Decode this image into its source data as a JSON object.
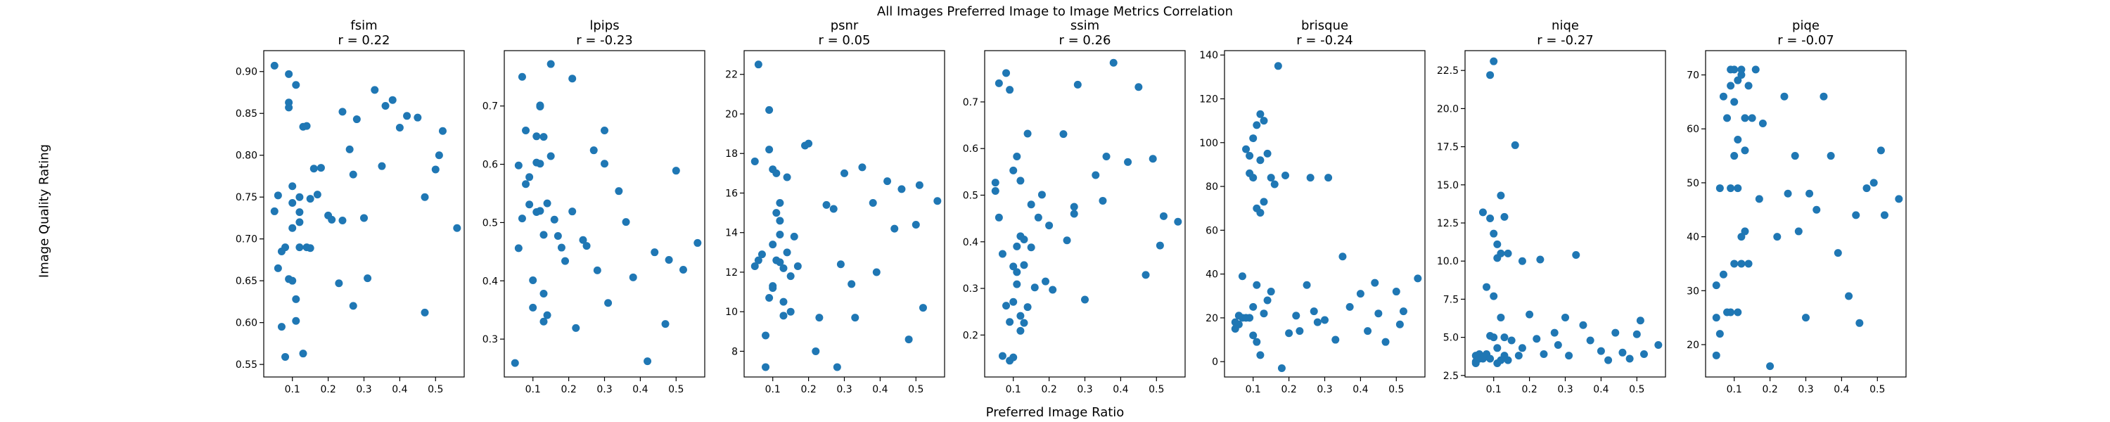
{
  "figure": {
    "suptitle": "All Images Preferred Image to Image Metrics Correlation",
    "xlabel": "Preferred Image Ratio",
    "ylabel": "Image Quality Rating",
    "marker_color": "#1f77b4"
  },
  "chart_data": [
    {
      "type": "scatter",
      "title": "fsim",
      "subtitle": "r = 0.22",
      "xlim": [
        0.02,
        0.58
      ],
      "ylim": [
        0.535,
        0.925
      ],
      "xticks": [
        0.1,
        0.2,
        0.3,
        0.4,
        0.5
      ],
      "yticks": [
        0.55,
        0.6,
        0.65,
        0.7,
        0.75,
        0.8,
        0.85,
        0.9
      ],
      "x": [
        0.05,
        0.05,
        0.06,
        0.06,
        0.07,
        0.07,
        0.08,
        0.08,
        0.09,
        0.09,
        0.09,
        0.09,
        0.1,
        0.1,
        0.1,
        0.1,
        0.11,
        0.11,
        0.11,
        0.12,
        0.12,
        0.12,
        0.12,
        0.13,
        0.13,
        0.14,
        0.14,
        0.15,
        0.15,
        0.16,
        0.17,
        0.18,
        0.2,
        0.21,
        0.23,
        0.24,
        0.24,
        0.26,
        0.27,
        0.27,
        0.28,
        0.3,
        0.31,
        0.33,
        0.35,
        0.36,
        0.38,
        0.4,
        0.42,
        0.45,
        0.47,
        0.47,
        0.5,
        0.51,
        0.52,
        0.56
      ],
      "y": [
        0.907,
        0.733,
        0.665,
        0.752,
        0.685,
        0.595,
        0.69,
        0.559,
        0.897,
        0.863,
        0.857,
        0.652,
        0.763,
        0.743,
        0.713,
        0.65,
        0.884,
        0.628,
        0.602,
        0.75,
        0.732,
        0.72,
        0.69,
        0.834,
        0.563,
        0.835,
        0.69,
        0.689,
        0.748,
        0.784,
        0.753,
        0.785,
        0.728,
        0.723,
        0.647,
        0.852,
        0.722,
        0.807,
        0.777,
        0.62,
        0.843,
        0.725,
        0.653,
        0.878,
        0.787,
        0.859,
        0.866,
        0.833,
        0.847,
        0.845,
        0.612,
        0.75,
        0.783,
        0.8,
        0.829,
        0.713
      ]
    },
    {
      "type": "scatter",
      "title": "lpips",
      "subtitle": "r = -0.23",
      "xlim": [
        0.02,
        0.58
      ],
      "ylim": [
        0.235,
        0.795
      ],
      "xticks": [
        0.1,
        0.2,
        0.3,
        0.4,
        0.5
      ],
      "yticks": [
        0.3,
        0.4,
        0.5,
        0.6,
        0.7
      ],
      "x": [
        0.05,
        0.06,
        0.06,
        0.07,
        0.07,
        0.08,
        0.08,
        0.09,
        0.09,
        0.1,
        0.1,
        0.11,
        0.11,
        0.11,
        0.12,
        0.12,
        0.12,
        0.12,
        0.13,
        0.13,
        0.13,
        0.13,
        0.14,
        0.14,
        0.15,
        0.15,
        0.16,
        0.17,
        0.18,
        0.19,
        0.21,
        0.21,
        0.22,
        0.24,
        0.25,
        0.27,
        0.28,
        0.3,
        0.3,
        0.31,
        0.34,
        0.36,
        0.38,
        0.42,
        0.44,
        0.47,
        0.48,
        0.5,
        0.52,
        0.56
      ],
      "y": [
        0.259,
        0.456,
        0.598,
        0.75,
        0.507,
        0.658,
        0.566,
        0.578,
        0.531,
        0.401,
        0.354,
        0.648,
        0.603,
        0.518,
        0.701,
        0.699,
        0.601,
        0.52,
        0.647,
        0.378,
        0.33,
        0.479,
        0.533,
        0.341,
        0.772,
        0.614,
        0.505,
        0.477,
        0.457,
        0.434,
        0.747,
        0.519,
        0.319,
        0.47,
        0.46,
        0.624,
        0.418,
        0.658,
        0.601,
        0.362,
        0.554,
        0.501,
        0.406,
        0.262,
        0.449,
        0.326,
        0.436,
        0.589,
        0.419,
        0.465
      ]
    },
    {
      "type": "scatter",
      "title": "psnr",
      "subtitle": "r = 0.05",
      "xlim": [
        0.02,
        0.58
      ],
      "ylim": [
        6.7,
        23.2
      ],
      "xticks": [
        0.1,
        0.2,
        0.3,
        0.4,
        0.5
      ],
      "yticks": [
        8,
        10,
        12,
        14,
        16,
        18,
        20,
        22
      ],
      "x": [
        0.05,
        0.05,
        0.06,
        0.06,
        0.07,
        0.08,
        0.08,
        0.09,
        0.09,
        0.09,
        0.1,
        0.1,
        0.1,
        0.1,
        0.11,
        0.11,
        0.11,
        0.12,
        0.12,
        0.12,
        0.12,
        0.13,
        0.13,
        0.13,
        0.14,
        0.14,
        0.15,
        0.15,
        0.16,
        0.17,
        0.19,
        0.2,
        0.22,
        0.23,
        0.25,
        0.27,
        0.28,
        0.29,
        0.3,
        0.32,
        0.33,
        0.35,
        0.38,
        0.39,
        0.42,
        0.44,
        0.46,
        0.48,
        0.5,
        0.51,
        0.52,
        0.56
      ],
      "y": [
        12.3,
        17.6,
        22.5,
        12.6,
        12.9,
        8.8,
        7.2,
        20.2,
        18.2,
        10.7,
        17.2,
        13.4,
        11.3,
        11.2,
        17.0,
        15.0,
        12.6,
        15.5,
        14.6,
        13.9,
        12.5,
        12.2,
        10.5,
        9.8,
        16.8,
        13.0,
        11.8,
        10.0,
        13.8,
        12.3,
        18.4,
        18.5,
        8.0,
        9.7,
        15.4,
        15.2,
        7.2,
        12.4,
        17.0,
        11.4,
        9.7,
        17.3,
        15.5,
        12.0,
        16.6,
        14.2,
        16.2,
        8.6,
        14.4,
        16.4,
        10.2,
        15.6
      ]
    },
    {
      "type": "scatter",
      "title": "ssim",
      "subtitle": "r = 0.26",
      "xlim": [
        0.02,
        0.58
      ],
      "ylim": [
        0.11,
        0.81
      ],
      "xticks": [
        0.1,
        0.2,
        0.3,
        0.4,
        0.5
      ],
      "yticks": [
        0.2,
        0.3,
        0.4,
        0.5,
        0.6,
        0.7
      ],
      "x": [
        0.05,
        0.05,
        0.06,
        0.06,
        0.07,
        0.07,
        0.08,
        0.08,
        0.09,
        0.09,
        0.09,
        0.1,
        0.1,
        0.1,
        0.1,
        0.11,
        0.11,
        0.11,
        0.11,
        0.12,
        0.12,
        0.12,
        0.12,
        0.13,
        0.13,
        0.13,
        0.14,
        0.14,
        0.15,
        0.15,
        0.16,
        0.17,
        0.18,
        0.19,
        0.2,
        0.21,
        0.24,
        0.25,
        0.27,
        0.27,
        0.28,
        0.3,
        0.33,
        0.35,
        0.36,
        0.38,
        0.42,
        0.45,
        0.47,
        0.49,
        0.51,
        0.52,
        0.56
      ],
      "y": [
        0.509,
        0.527,
        0.452,
        0.74,
        0.374,
        0.155,
        0.762,
        0.263,
        0.726,
        0.228,
        0.145,
        0.553,
        0.347,
        0.271,
        0.152,
        0.583,
        0.39,
        0.335,
        0.309,
        0.531,
        0.412,
        0.241,
        0.209,
        0.405,
        0.35,
        0.226,
        0.632,
        0.26,
        0.48,
        0.388,
        0.302,
        0.452,
        0.501,
        0.315,
        0.435,
        0.297,
        0.631,
        0.403,
        0.475,
        0.46,
        0.737,
        0.276,
        0.543,
        0.488,
        0.583,
        0.784,
        0.571,
        0.732,
        0.329,
        0.578,
        0.392,
        0.455,
        0.443
      ]
    },
    {
      "type": "scatter",
      "title": "brisque",
      "subtitle": "r = -0.24",
      "xlim": [
        0.02,
        0.58
      ],
      "ylim": [
        -7.0,
        142.0
      ],
      "xticks": [
        0.1,
        0.2,
        0.3,
        0.4,
        0.5
      ],
      "yticks": [
        0,
        20,
        40,
        60,
        80,
        100,
        120,
        140
      ],
      "x": [
        0.05,
        0.05,
        0.06,
        0.06,
        0.07,
        0.07,
        0.08,
        0.08,
        0.09,
        0.09,
        0.09,
        0.1,
        0.1,
        0.1,
        0.1,
        0.11,
        0.11,
        0.11,
        0.11,
        0.12,
        0.12,
        0.12,
        0.12,
        0.13,
        0.13,
        0.13,
        0.14,
        0.14,
        0.15,
        0.15,
        0.16,
        0.17,
        0.18,
        0.19,
        0.2,
        0.22,
        0.23,
        0.25,
        0.26,
        0.27,
        0.28,
        0.3,
        0.31,
        0.33,
        0.35,
        0.37,
        0.4,
        0.42,
        0.44,
        0.45,
        0.47,
        0.5,
        0.51,
        0.52,
        0.56
      ],
      "y": [
        18,
        15,
        21,
        17,
        39,
        20,
        97,
        20,
        94,
        20,
        86,
        102,
        84,
        25,
        12,
        108,
        70,
        35,
        9,
        113,
        92,
        68,
        3,
        110,
        73,
        22,
        95,
        28,
        84,
        32,
        81,
        135,
        -3,
        85,
        13,
        21,
        14,
        35,
        84,
        23,
        18,
        19,
        84,
        10,
        48,
        25,
        31,
        14,
        36,
        22,
        9,
        32,
        17,
        23,
        38
      ]
    },
    {
      "type": "scatter",
      "title": "niqe",
      "subtitle": "r = -0.27",
      "xlim": [
        0.02,
        0.58
      ],
      "ylim": [
        2.4,
        23.8
      ],
      "xticks": [
        0.1,
        0.2,
        0.3,
        0.4,
        0.5
      ],
      "yticks": [
        2.5,
        5.0,
        7.5,
        10.0,
        12.5,
        15.0,
        17.5,
        20.0,
        22.5
      ],
      "x": [
        0.05,
        0.05,
        0.05,
        0.06,
        0.06,
        0.07,
        0.07,
        0.08,
        0.08,
        0.09,
        0.09,
        0.09,
        0.09,
        0.1,
        0.1,
        0.1,
        0.1,
        0.11,
        0.11,
        0.11,
        0.11,
        0.12,
        0.12,
        0.12,
        0.12,
        0.13,
        0.13,
        0.13,
        0.14,
        0.14,
        0.15,
        0.16,
        0.17,
        0.18,
        0.18,
        0.2,
        0.22,
        0.23,
        0.24,
        0.27,
        0.28,
        0.3,
        0.31,
        0.33,
        0.35,
        0.37,
        0.4,
        0.42,
        0.44,
        0.46,
        0.48,
        0.5,
        0.51,
        0.52,
        0.56
      ],
      "y": [
        3.8,
        3.4,
        3.3,
        3.9,
        3.6,
        13.2,
        3.6,
        8.3,
        3.9,
        22.2,
        12.8,
        5.1,
        3.6,
        23.1,
        11.8,
        7.7,
        5.0,
        11.1,
        10.2,
        4.3,
        3.3,
        14.3,
        10.5,
        6.3,
        3.5,
        12.9,
        5.0,
        3.8,
        10.5,
        3.5,
        4.8,
        17.6,
        3.8,
        10.0,
        4.3,
        6.5,
        4.9,
        10.1,
        3.9,
        5.3,
        4.5,
        6.3,
        3.8,
        10.4,
        5.8,
        4.8,
        4.1,
        3.5,
        5.3,
        4.0,
        3.6,
        5.2,
        6.1,
        3.9,
        4.5
      ]
    },
    {
      "type": "scatter",
      "title": "piqe",
      "subtitle": "r = -0.07",
      "xlim": [
        0.02,
        0.58
      ],
      "ylim": [
        14.0,
        74.5
      ],
      "xticks": [
        0.1,
        0.2,
        0.3,
        0.4,
        0.5
      ],
      "yticks": [
        20,
        30,
        40,
        50,
        60,
        70
      ],
      "x": [
        0.05,
        0.05,
        0.05,
        0.06,
        0.06,
        0.07,
        0.07,
        0.08,
        0.08,
        0.09,
        0.09,
        0.09,
        0.09,
        0.1,
        0.1,
        0.1,
        0.1,
        0.11,
        0.11,
        0.11,
        0.11,
        0.12,
        0.12,
        0.12,
        0.12,
        0.13,
        0.13,
        0.13,
        0.14,
        0.14,
        0.15,
        0.16,
        0.17,
        0.18,
        0.2,
        0.22,
        0.24,
        0.25,
        0.27,
        0.28,
        0.3,
        0.31,
        0.33,
        0.35,
        0.37,
        0.39,
        0.42,
        0.44,
        0.45,
        0.47,
        0.49,
        0.51,
        0.52,
        0.56
      ],
      "y": [
        18,
        25,
        31,
        49,
        22,
        66,
        33,
        62,
        26,
        71,
        68,
        49,
        26,
        71,
        65,
        55,
        35,
        69,
        58,
        49,
        26,
        71,
        70,
        40,
        35,
        62,
        41,
        56,
        68,
        35,
        62,
        71,
        47,
        61,
        16,
        40,
        66,
        48,
        55,
        41,
        25,
        48,
        45,
        66,
        55,
        37,
        29,
        44,
        24,
        49,
        50,
        56,
        44,
        47
      ]
    }
  ]
}
